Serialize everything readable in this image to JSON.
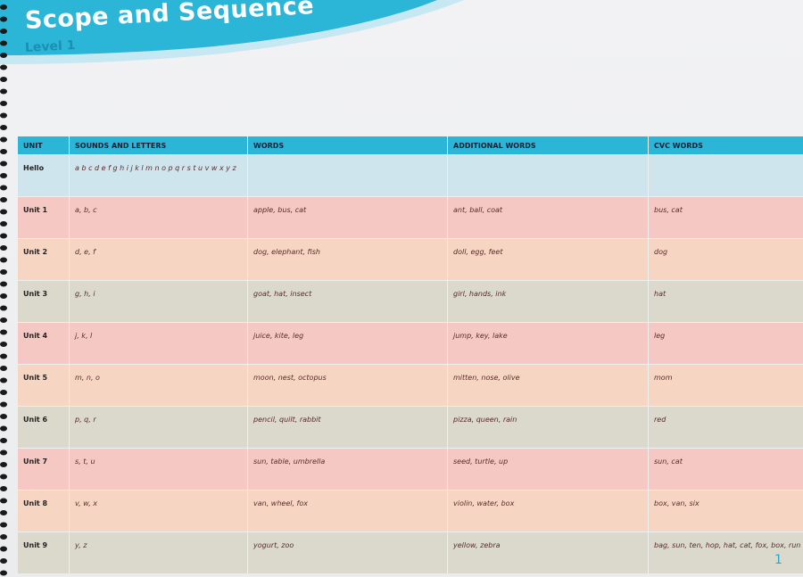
{
  "header": {
    "title": "Scope and Sequence",
    "subtitle": "Level 1"
  },
  "table": {
    "columns": [
      "UNIT",
      "SOUNDS AND LETTERS",
      "WORDS",
      "ADDITIONAL WORDS",
      "CVC WORDS"
    ],
    "rows": [
      [
        "Hello",
        "a b c d e f g h i j k l m n o p q r s t u v w x y z",
        "",
        "",
        ""
      ],
      [
        "Unit 1",
        "a, b, c",
        "apple, bus, cat",
        "ant, ball, coat",
        "bus, cat"
      ],
      [
        "Unit 2",
        "d, e, f",
        "dog, elephant, fish",
        "doll, egg, feet",
        "dog"
      ],
      [
        "Unit 3",
        "g, h, i",
        "goat, hat, insect",
        "girl, hands, ink",
        "hat"
      ],
      [
        "Unit 4",
        "j, k, l",
        "juice, kite, leg",
        "jump, key, lake",
        "leg"
      ],
      [
        "Unit 5",
        "m, n, o",
        "moon, nest, octopus",
        "mitten, nose, olive",
        "mom"
      ],
      [
        "Unit 6",
        "p, q, r",
        "pencil, quilt, rabbit",
        "pizza, queen, rain",
        "red"
      ],
      [
        "Unit 7",
        "s, t, u",
        "sun, table, umbrella",
        "seed, turtle, up",
        "sun, cat"
      ],
      [
        "Unit 8",
        "v, w, x",
        "van, wheel, fox",
        "violin, water, box",
        "box, van, six"
      ],
      [
        "Unit 9",
        "y, z",
        "yogurt, zoo",
        "yellow, zebra",
        "bag, sun, ten, hop, hat, cat, fox, box, run"
      ]
    ]
  },
  "page_number": "1"
}
